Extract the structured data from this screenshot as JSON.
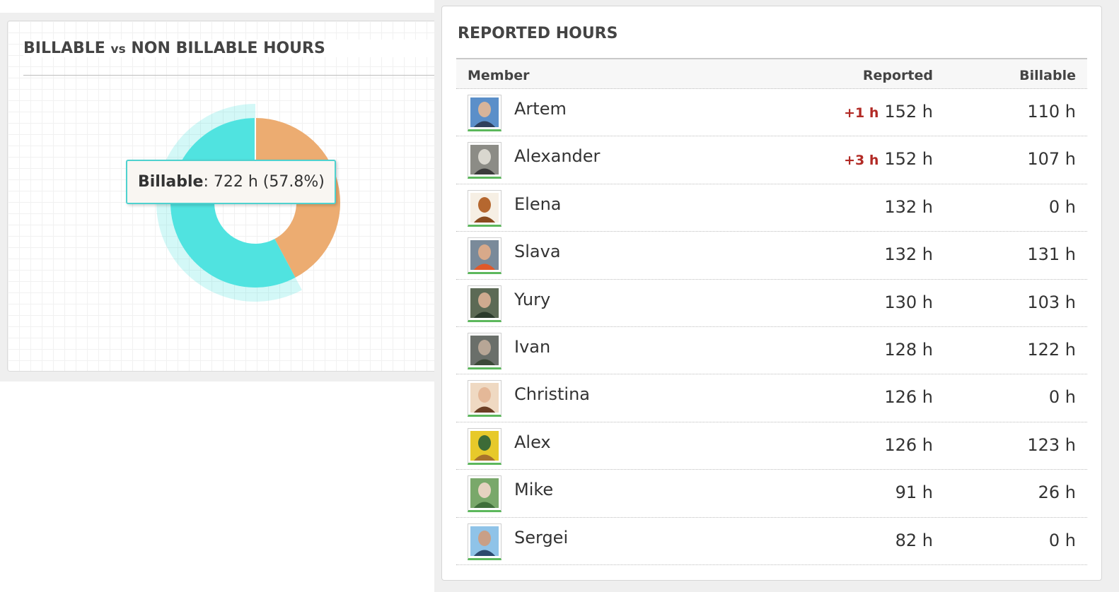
{
  "billable_panel": {
    "title_part1": "BILLABLE",
    "title_vs": "vs",
    "title_part2": "NON BILLABLE HOURS",
    "tooltip": {
      "label": "Billable",
      "separator": ":",
      "value": "722 h (57.8%)"
    }
  },
  "chart_data": {
    "type": "pie",
    "title": "BILLABLE vs NON BILLABLE HOURS",
    "slices": [
      {
        "name": "Billable",
        "value": 722,
        "percent": 57.8,
        "color": "#50e3e0",
        "highlighted": true
      },
      {
        "name": "Non billable",
        "value": 527,
        "percent": 42.2,
        "color": "#ecac71"
      }
    ],
    "donut": true
  },
  "reported_panel": {
    "title": "REPORTED HOURS",
    "columns": {
      "member": "Member",
      "reported": "Reported",
      "billable": "Billable"
    },
    "rows": [
      {
        "name": "Artem",
        "delta": "+1 h",
        "reported": "152 h",
        "billable": "110 h",
        "avatar_colors": [
          "#5b8fc9",
          "#d7b49a",
          "#2f3f5c"
        ]
      },
      {
        "name": "Alexander",
        "delta": "+3 h",
        "reported": "152 h",
        "billable": "107 h",
        "avatar_colors": [
          "#8c8c86",
          "#d9d7cf",
          "#3b3b3b"
        ]
      },
      {
        "name": "Elena",
        "delta": "",
        "reported": "132 h",
        "billable": "0 h",
        "avatar_colors": [
          "#f6efe4",
          "#b5672f",
          "#8a4b1f"
        ]
      },
      {
        "name": "Slava",
        "delta": "",
        "reported": "132 h",
        "billable": "131 h",
        "avatar_colors": [
          "#7a8a9a",
          "#d8a98a",
          "#e0592a"
        ]
      },
      {
        "name": "Yury",
        "delta": "",
        "reported": "130 h",
        "billable": "103 h",
        "avatar_colors": [
          "#5c6a55",
          "#cfaa8f",
          "#2b3b2c"
        ]
      },
      {
        "name": "Ivan",
        "delta": "",
        "reported": "128 h",
        "billable": "122 h",
        "avatar_colors": [
          "#6a6f6a",
          "#b7a696",
          "#3c4a38"
        ]
      },
      {
        "name": "Christina",
        "delta": "",
        "reported": "126 h",
        "billable": "0 h",
        "avatar_colors": [
          "#efd9c2",
          "#e4b898",
          "#6b3e24"
        ]
      },
      {
        "name": "Alex",
        "delta": "",
        "reported": "126 h",
        "billable": "123 h",
        "avatar_colors": [
          "#e7c92a",
          "#3d6b37",
          "#a8722c"
        ]
      },
      {
        "name": "Mike",
        "delta": "",
        "reported": "91 h",
        "billable": "26 h",
        "avatar_colors": [
          "#79a86a",
          "#e6d2c0",
          "#3f6f3a"
        ]
      },
      {
        "name": "Sergei",
        "delta": "",
        "reported": "82 h",
        "billable": "0 h",
        "avatar_colors": [
          "#8fc3e8",
          "#c99f86",
          "#2d4a6e"
        ]
      }
    ]
  }
}
